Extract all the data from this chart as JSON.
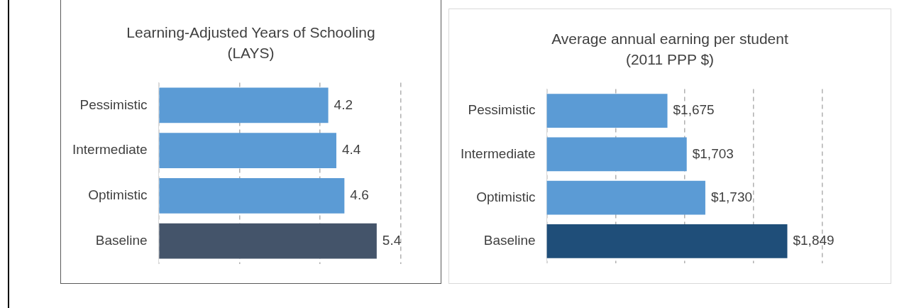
{
  "chart_data": [
    {
      "type": "bar",
      "orientation": "horizontal",
      "title": "Learning-Adjusted Years of Schooling (LAYS)",
      "categories": [
        "Pessimistic",
        "Intermediate",
        "Optimistic",
        "Baseline"
      ],
      "values": [
        4.2,
        4.4,
        4.6,
        5.4
      ],
      "colors": [
        "#5b9bd5",
        "#5b9bd5",
        "#5b9bd5",
        "#44546a"
      ],
      "xlim": [
        0,
        6
      ],
      "xticks": [
        {
          "value": 0,
          "label": null
        },
        {
          "value": 2,
          "label": null
        },
        {
          "value": 4,
          "label": null
        },
        {
          "value": 6,
          "label": null
        }
      ],
      "grid": "x",
      "tick_labels": "y",
      "data_labels": true
    },
    {
      "type": "bar",
      "orientation": "horizontal",
      "title": "Average annual earning per student (2011 PPP $)",
      "categories": [
        "Pessimistic",
        "Intermediate",
        "Optimistic",
        "Baseline"
      ],
      "values": [
        1675,
        1703,
        1730,
        1849
      ],
      "value_labels": [
        "$1,675",
        "$1,703",
        "$1,730",
        "$1,849"
      ],
      "colors": [
        "#5b9bd5",
        "#5b9bd5",
        "#5b9bd5",
        "#1f4e79"
      ],
      "xlim": [
        1500,
        1900
      ],
      "xticks": [
        {
          "value": 1500,
          "label": null
        },
        {
          "value": 1600,
          "label": null
        },
        {
          "value": 1700,
          "label": null
        },
        {
          "value": 1800,
          "label": null
        },
        {
          "value": 1900,
          "label": null
        }
      ],
      "grid": "x",
      "tick_labels": "y"
    }
  ]
}
